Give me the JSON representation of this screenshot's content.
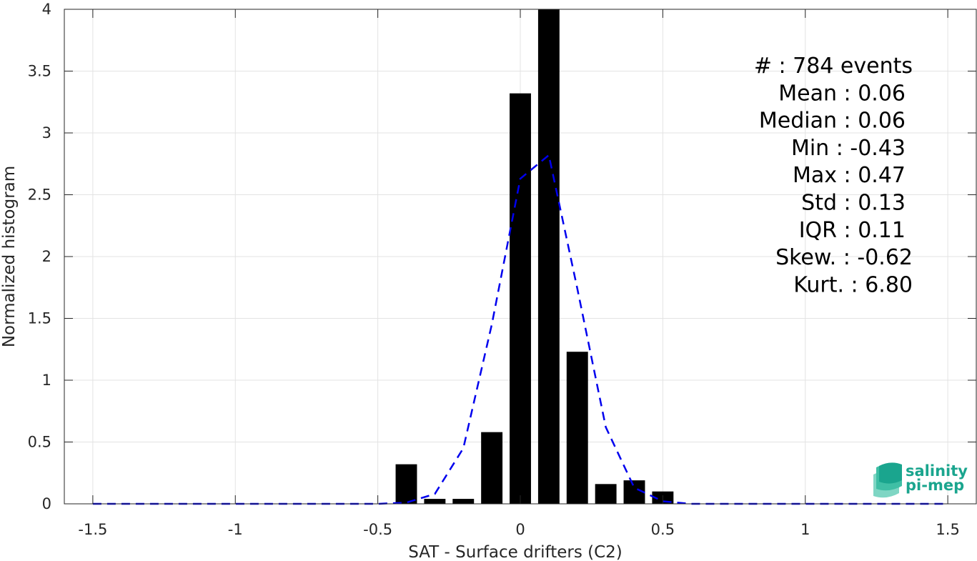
{
  "chart_data": {
    "type": "bar",
    "xlabel": "SAT - Surface drifters (C2)",
    "ylabel": "Normalized histogram",
    "xlim": [
      -1.6,
      1.6
    ],
    "ylim": [
      0,
      4
    ],
    "grid": true,
    "xticks": [
      -1.5,
      -1,
      -0.5,
      0,
      0.5,
      1,
      1.5
    ],
    "xtick_labels": [
      "-1.5",
      "-1",
      "-0.5",
      "0",
      "0.5",
      "1",
      "1.5"
    ],
    "yticks": [
      0,
      0.5,
      1,
      1.5,
      2,
      2.5,
      3,
      3.5,
      4
    ],
    "ytick_labels": [
      "0",
      "0.5",
      "1",
      "1.5",
      "2",
      "2.5",
      "3",
      "3.5",
      "4"
    ],
    "bar_width": 0.075,
    "bar_color": "#000000",
    "bars": [
      {
        "x": -0.4,
        "value": 0.32
      },
      {
        "x": -0.3,
        "value": 0.04
      },
      {
        "x": -0.2,
        "value": 0.04
      },
      {
        "x": -0.1,
        "value": 0.58
      },
      {
        "x": 0.0,
        "value": 3.32
      },
      {
        "x": 0.1,
        "value": 4.0
      },
      {
        "x": 0.2,
        "value": 1.23
      },
      {
        "x": 0.3,
        "value": 0.16
      },
      {
        "x": 0.4,
        "value": 0.19
      },
      {
        "x": 0.5,
        "value": 0.1
      }
    ],
    "fit_line": {
      "style": "dashed",
      "color": "#0000ee",
      "points": [
        [
          -1.5,
          0.0
        ],
        [
          -0.5,
          0.0
        ],
        [
          -0.4,
          0.01
        ],
        [
          -0.3,
          0.08
        ],
        [
          -0.2,
          0.45
        ],
        [
          -0.1,
          1.45
        ],
        [
          0.0,
          2.63
        ],
        [
          0.1,
          2.82
        ],
        [
          0.2,
          1.74
        ],
        [
          0.3,
          0.62
        ],
        [
          0.4,
          0.13
        ],
        [
          0.5,
          0.02
        ],
        [
          0.6,
          0.0
        ],
        [
          1.5,
          0.0
        ]
      ]
    },
    "annotations": [
      "#  : 784 events",
      "Mean : 0.06",
      "Median : 0.06",
      "Min : -0.43",
      "Max : 0.47",
      "Std : 0.13",
      "IQR : 0.11",
      "Skew. : -0.62",
      "Kurt. : 6.80"
    ]
  },
  "logo": {
    "line1": "salinity",
    "line2": "pi-mep",
    "color": "#1aa58e"
  }
}
